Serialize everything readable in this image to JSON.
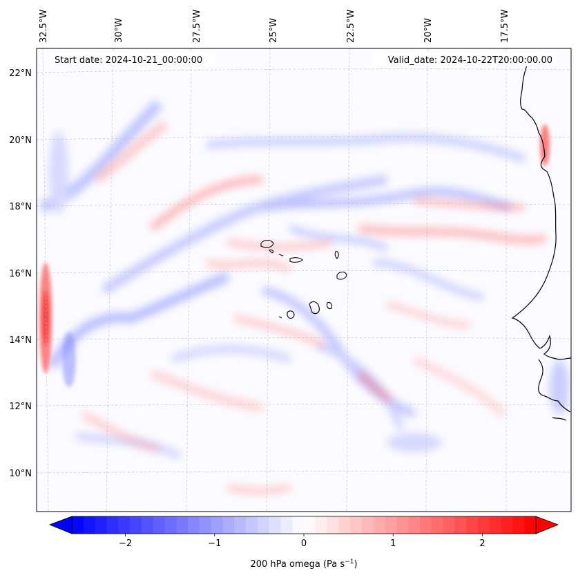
{
  "map": {
    "start_date": "Start date: 2024-10-21_00:00:00",
    "valid_date": "Valid_date: 2024-10-22T20:00:00.00",
    "lon_labels": [
      "32.5°W",
      "30°W",
      "27.5°W",
      "25°W",
      "22.5°W",
      "20°W",
      "17.5°W"
    ],
    "lat_labels": [
      "22°N",
      "20°N",
      "18°N",
      "16°N",
      "14°N",
      "12°N",
      "10°N"
    ],
    "gridlines": true
  },
  "colorbar": {
    "label": "200 hPa omega (Pa s",
    "label_sup": "−1",
    "label_close": ")",
    "ticks": [
      "−2",
      "−1",
      "0",
      "1",
      "2"
    ],
    "vmin": -2.6,
    "vmax": 2.6,
    "tick_values": [
      -2,
      -1,
      0,
      1,
      2
    ],
    "colormap": "bwr",
    "extend": "both",
    "low_color": "#0000ff",
    "mid_color": "#ffffff",
    "high_color": "#ff0000"
  }
}
